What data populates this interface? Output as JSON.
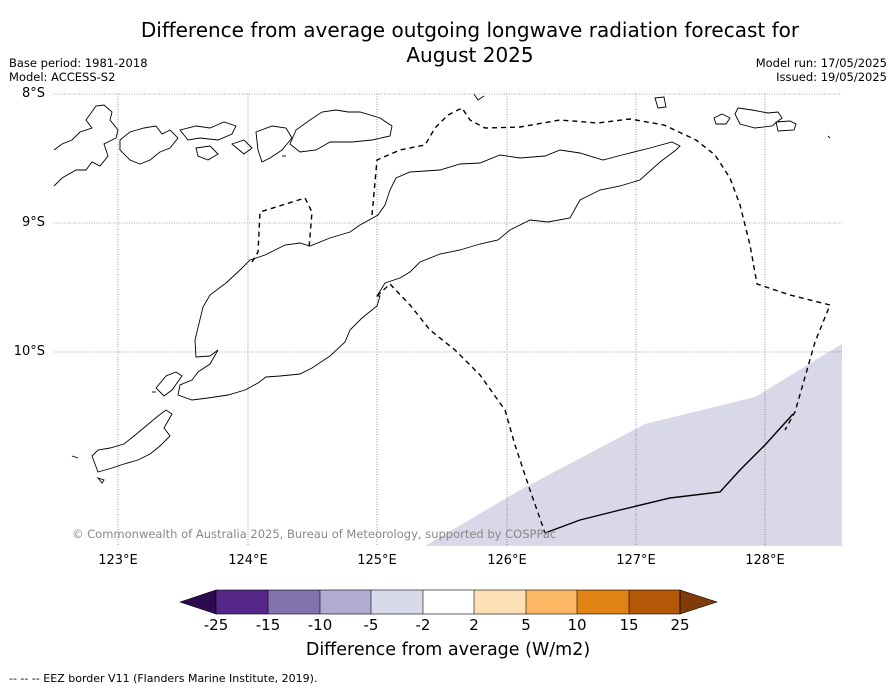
{
  "title_line1": "Difference from average outgoing longwave radiation forecast for",
  "title_line2": "August 2025",
  "meta_left": {
    "base_period": "Base period: 1981-2018",
    "model": "Model: ACCESS-S2"
  },
  "meta_right": {
    "model_run": "Model run: 17/05/2025",
    "issued": "Issued: 19/05/2025"
  },
  "map": {
    "lat_labels": [
      "8°S",
      "9°S",
      "10°S"
    ],
    "lon_labels": [
      "123°E",
      "124°E",
      "125°E",
      "126°E",
      "127°E",
      "128°E"
    ],
    "shaded_anomaly_color": "#d8d8e9",
    "eez_line_style": "dashed",
    "copyright": "© Commonwealth of Australia 2025, Bureau of Meteorology, supported by COSPPac"
  },
  "colorbar": {
    "ticks": [
      "-25",
      "-15",
      "-10",
      "-5",
      "-2",
      "2",
      "5",
      "10",
      "15",
      "25"
    ],
    "colors": [
      "#2d0a4e",
      "#542788",
      "#8073ac",
      "#b2abd2",
      "#d8daeb",
      "#ffffff",
      "#fee0b6",
      "#fdb863",
      "#e08214",
      "#b35806",
      "#7f3b08"
    ],
    "title": "Difference from average (W/m2)"
  },
  "footnote": "--  --  -- EEZ border V11 (Flanders Marine Institute, 2019)."
}
